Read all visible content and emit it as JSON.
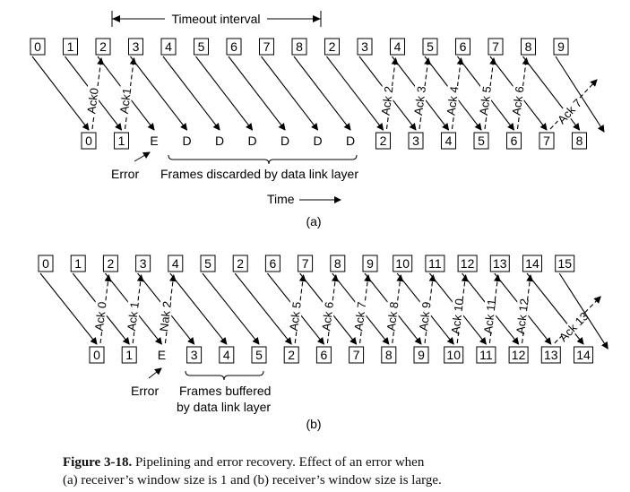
{
  "diagram_a": {
    "top_frames": [
      "0",
      "1",
      "2",
      "3",
      "4",
      "5",
      "6",
      "7",
      "8",
      "2",
      "3",
      "4",
      "5",
      "6",
      "7",
      "8",
      "9"
    ],
    "bottom_items": [
      {
        "text": "0",
        "box": true
      },
      {
        "text": "1",
        "box": true
      },
      {
        "text": "E",
        "box": false
      },
      {
        "text": "D",
        "box": false
      },
      {
        "text": "D",
        "box": false
      },
      {
        "text": "D",
        "box": false
      },
      {
        "text": "D",
        "box": false
      },
      {
        "text": "D",
        "box": false
      },
      {
        "text": "D",
        "box": false
      },
      {
        "text": "2",
        "box": true
      },
      {
        "text": "3",
        "box": true
      },
      {
        "text": "4",
        "box": true
      },
      {
        "text": "5",
        "box": true
      },
      {
        "text": "6",
        "box": true
      },
      {
        "text": "7",
        "box": true
      },
      {
        "text": "8",
        "box": true
      }
    ],
    "acks": [
      "Ack0",
      "Ack1",
      "Ack 2",
      "Ack 3",
      "Ack 4",
      "Ack 5",
      "Ack 6",
      "Ack 7"
    ],
    "timeout_label": "Timeout interval",
    "error_label": "Error",
    "discard_label": "Frames discarded by data link layer",
    "time_label": "Time",
    "sub_label": "(a)"
  },
  "diagram_b": {
    "top_frames": [
      "0",
      "1",
      "2",
      "3",
      "4",
      "5",
      "2",
      "6",
      "7",
      "8",
      "9",
      "10",
      "11",
      "12",
      "13",
      "14",
      "15"
    ],
    "bottom_items": [
      {
        "text": "0",
        "box": true
      },
      {
        "text": "1",
        "box": true
      },
      {
        "text": "E",
        "box": false
      },
      {
        "text": "3",
        "box": true
      },
      {
        "text": "4",
        "box": true
      },
      {
        "text": "5",
        "box": true
      },
      {
        "text": "2",
        "box": true
      },
      {
        "text": "6",
        "box": true
      },
      {
        "text": "7",
        "box": true
      },
      {
        "text": "8",
        "box": true
      },
      {
        "text": "9",
        "box": true
      },
      {
        "text": "10",
        "box": true
      },
      {
        "text": "11",
        "box": true
      },
      {
        "text": "12",
        "box": true
      },
      {
        "text": "13",
        "box": true
      },
      {
        "text": "14",
        "box": true
      }
    ],
    "acks": [
      "Ack 0",
      "Ack 1",
      "Nak 2",
      "Ack 5",
      "Ack 6",
      "Ack 7",
      "Ack 8",
      "Ack 9",
      "Ack 10",
      "Ack 11",
      "Ack 12",
      "Ack 13"
    ],
    "error_label": "Error",
    "buffer_label_1": "Frames buffered",
    "buffer_label_2": "by data link layer",
    "sub_label": "(b)"
  },
  "caption": {
    "figure_label": "Figure 3-18.",
    "line1": "Pipelining and error recovery. Effect of an error when",
    "line2": "(a) receiver’s window size is 1 and (b) receiver’s window size is large."
  }
}
